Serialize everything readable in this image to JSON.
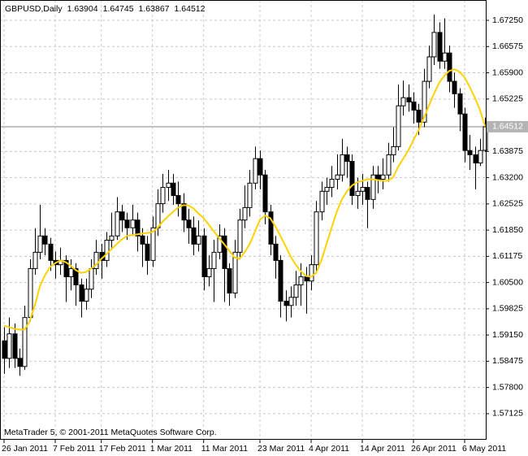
{
  "chart_data": {
    "type": "candlestick",
    "title": "GBPUSD,Daily",
    "footer": "MetaTrader 5, © 2001-2011 MetaQuotes Software Corp.",
    "categories": [
      "26 Jan 2011",
      null,
      null,
      null,
      null,
      null,
      null,
      null,
      null,
      null,
      "7 Feb 2011",
      null,
      null,
      null,
      null,
      null,
      null,
      null,
      null,
      "17 Feb 2011",
      null,
      null,
      null,
      null,
      null,
      null,
      null,
      null,
      null,
      "1 Mar 2011",
      null,
      null,
      null,
      null,
      null,
      null,
      null,
      null,
      null,
      "11 Mar 2011",
      null,
      null,
      null,
      null,
      null,
      null,
      null,
      null,
      null,
      null,
      "23 Mar 2011",
      null,
      null,
      null,
      null,
      null,
      null,
      null,
      null,
      null,
      "4 Apr 2011",
      null,
      null,
      null,
      null,
      null,
      null,
      null,
      null,
      null,
      "14 Apr 2011",
      null,
      null,
      null,
      null,
      null,
      null,
      null,
      null,
      null,
      "26 Apr 2011",
      null,
      null,
      null,
      null,
      null,
      null,
      null,
      null,
      null,
      "6 May 2011",
      null,
      null,
      null,
      null
    ],
    "open": [
      1.59,
      1.5855,
      1.5918,
      1.5855,
      1.5834,
      1.596,
      1.6086,
      1.6128,
      1.617,
      1.6149,
      1.6107,
      1.6096,
      1.6107,
      1.6065,
      1.6086,
      1.6044,
      1.6002,
      1.6033,
      1.6086,
      1.6128,
      1.6107,
      1.6159,
      1.617,
      1.6232,
      1.6211,
      1.6191,
      1.6211,
      1.617,
      1.6149,
      1.6107,
      1.6191,
      1.6253,
      1.6295,
      1.6306,
      1.6274,
      1.6253,
      1.6211,
      1.6191,
      1.6149,
      1.617,
      1.6065,
      1.6086,
      1.6128,
      1.617,
      1.6086,
      1.6023,
      1.6128,
      1.6211,
      1.6243,
      1.6306,
      1.6369,
      1.6327,
      1.6232,
      1.6149,
      1.6107,
      1.6002,
      1.5991,
      1.6012,
      1.6044,
      1.6065,
      1.6054,
      1.6096,
      1.6232,
      1.6285,
      1.6295,
      1.6316,
      1.6327,
      1.6379,
      1.6362,
      1.6274,
      1.6285,
      1.6295,
      1.6264,
      1.6327,
      1.6316,
      1.6327,
      1.6379,
      1.64,
      1.6505,
      1.6526,
      1.6515,
      1.6494,
      1.6463,
      1.6568,
      1.6631,
      1.6694,
      1.662,
      1.6641,
      1.6568,
      1.6536,
      1.6484,
      1.639,
      1.6379,
      1.6358,
      1.63904
    ],
    "high": [
      1.5935,
      1.596,
      1.5945,
      1.588,
      1.599,
      1.611,
      1.619,
      1.625,
      1.619,
      1.6165,
      1.613,
      1.614,
      1.612,
      1.611,
      1.61,
      1.606,
      1.606,
      1.611,
      1.616,
      1.615,
      1.618,
      1.623,
      1.627,
      1.625,
      1.623,
      1.625,
      1.623,
      1.619,
      1.617,
      1.622,
      1.629,
      1.633,
      1.634,
      1.633,
      1.631,
      1.628,
      1.624,
      1.622,
      1.621,
      1.619,
      1.612,
      1.616,
      1.62,
      1.619,
      1.61,
      1.616,
      1.624,
      1.63,
      1.634,
      1.64,
      1.639,
      1.634,
      1.625,
      1.617,
      1.612,
      1.603,
      1.604,
      1.608,
      1.61,
      1.609,
      1.612,
      1.626,
      1.631,
      1.632,
      1.635,
      1.638,
      1.642,
      1.64,
      1.638,
      1.632,
      1.633,
      1.631,
      1.635,
      1.635,
      1.637,
      1.641,
      1.645,
      1.656,
      1.657,
      1.656,
      1.654,
      1.651,
      1.66,
      1.666,
      1.674,
      1.672,
      1.673,
      1.666,
      1.659,
      1.655,
      1.65,
      1.643,
      1.64,
      1.642,
      1.64745
    ],
    "low": [
      1.5815,
      1.583,
      1.583,
      1.581,
      1.5825,
      1.595,
      1.607,
      1.611,
      1.612,
      1.608,
      1.606,
      1.607,
      1.6,
      1.603,
      1.599,
      1.596,
      1.598,
      1.601,
      1.607,
      1.606,
      1.609,
      1.614,
      1.616,
      1.618,
      1.616,
      1.617,
      1.613,
      1.609,
      1.607,
      1.609,
      1.617,
      1.623,
      1.626,
      1.625,
      1.622,
      1.618,
      1.615,
      1.612,
      1.613,
      1.603,
      1.604,
      1.6,
      1.611,
      1.6,
      1.599,
      1.601,
      1.611,
      1.619,
      1.622,
      1.629,
      1.629,
      1.62,
      1.612,
      1.606,
      1.596,
      1.595,
      1.596,
      1.599,
      1.599,
      1.597,
      1.603,
      1.608,
      1.621,
      1.625,
      1.627,
      1.629,
      1.631,
      1.632,
      1.625,
      1.624,
      1.625,
      1.619,
      1.624,
      1.628,
      1.629,
      1.631,
      1.636,
      1.639,
      1.648,
      1.649,
      1.646,
      1.643,
      1.645,
      1.655,
      1.661,
      1.66,
      1.66,
      1.654,
      1.65,
      1.644,
      1.636,
      1.634,
      1.629,
      1.635,
      1.63867
    ],
    "close": [
      1.5855,
      1.5918,
      1.5855,
      1.5834,
      1.596,
      1.6086,
      1.6128,
      1.617,
      1.6149,
      1.6107,
      1.6096,
      1.6107,
      1.6065,
      1.6086,
      1.6044,
      1.6002,
      1.6033,
      1.6086,
      1.6128,
      1.6107,
      1.6159,
      1.617,
      1.6232,
      1.6211,
      1.6191,
      1.6211,
      1.617,
      1.6149,
      1.6107,
      1.6191,
      1.6253,
      1.6295,
      1.6306,
      1.6274,
      1.6253,
      1.6211,
      1.6191,
      1.6149,
      1.617,
      1.6065,
      1.6086,
      1.6128,
      1.617,
      1.6086,
      1.6023,
      1.6128,
      1.6211,
      1.6243,
      1.6306,
      1.6369,
      1.6327,
      1.6232,
      1.6149,
      1.6107,
      1.6002,
      1.5991,
      1.6012,
      1.6044,
      1.6065,
      1.6054,
      1.6096,
      1.6232,
      1.6285,
      1.6295,
      1.6316,
      1.6327,
      1.6379,
      1.6362,
      1.6274,
      1.6285,
      1.6295,
      1.6264,
      1.6327,
      1.6316,
      1.6327,
      1.6379,
      1.64,
      1.6505,
      1.6526,
      1.6515,
      1.6494,
      1.6463,
      1.6568,
      1.6631,
      1.6694,
      1.662,
      1.6641,
      1.6568,
      1.6536,
      1.6484,
      1.639,
      1.6379,
      1.6358,
      1.639,
      1.64512
    ],
    "up_color": "#ffffff",
    "down_color": "#000000",
    "ma": {
      "color": "#ffd200",
      "values": [
        1.5939,
        1.5935,
        1.5931,
        1.5929,
        1.5929,
        1.595,
        1.5991,
        1.604,
        1.6069,
        1.609,
        1.61,
        1.6107,
        1.6103,
        1.6094,
        1.6082,
        1.6075,
        1.6077,
        1.6086,
        1.6096,
        1.6111,
        1.6123,
        1.6136,
        1.6149,
        1.6161,
        1.617,
        1.6172,
        1.6174,
        1.6176,
        1.6178,
        1.618,
        1.6191,
        1.6207,
        1.622,
        1.6232,
        1.6243,
        1.6249,
        1.6249,
        1.6241,
        1.6228,
        1.6216,
        1.6199,
        1.6182,
        1.6165,
        1.6149,
        1.6132,
        1.6115,
        1.6111,
        1.6128,
        1.6149,
        1.618,
        1.6212,
        1.6222,
        1.6216,
        1.6195,
        1.617,
        1.6144,
        1.6117,
        1.6096,
        1.6079,
        1.6067,
        1.6065,
        1.6075,
        1.6107,
        1.6149,
        1.6191,
        1.6232,
        1.6264,
        1.6285,
        1.63,
        1.6308,
        1.6312,
        1.6316,
        1.6316,
        1.6314,
        1.6312,
        1.6312,
        1.632,
        1.6348,
        1.6369,
        1.639,
        1.6417,
        1.6442,
        1.6473,
        1.6505,
        1.6536,
        1.6564,
        1.6582,
        1.6595,
        1.6599,
        1.6593,
        1.6578,
        1.6553,
        1.6526,
        1.6494,
        1.6452
      ]
    },
    "ylim": [
      1.56454,
      1.67774
    ],
    "yticks": [
      {
        "value": 1.6725,
        "label": "1.67250"
      },
      {
        "value": 1.66575,
        "label": "1.66575"
      },
      {
        "value": 1.659,
        "label": "1.65900"
      },
      {
        "value": 1.65225,
        "label": "1.65225"
      },
      {
        "value": 1.63875,
        "label": "1.63875"
      },
      {
        "value": 1.632,
        "label": "1.63200"
      },
      {
        "value": 1.62525,
        "label": "1.62525"
      },
      {
        "value": 1.6185,
        "label": "1.61850"
      },
      {
        "value": 1.61175,
        "label": "1.61175"
      },
      {
        "value": 1.605,
        "label": "1.60500"
      },
      {
        "value": 1.59825,
        "label": "1.59825"
      },
      {
        "value": 1.5915,
        "label": "1.59150"
      },
      {
        "value": 1.58475,
        "label": "1.58475"
      },
      {
        "value": 1.578,
        "label": "1.57800"
      },
      {
        "value": 1.57125,
        "label": "1.57125"
      }
    ],
    "grid": true,
    "grid_color": "#c8c8c8",
    "price_line_color": "#c0c0c0"
  }
}
